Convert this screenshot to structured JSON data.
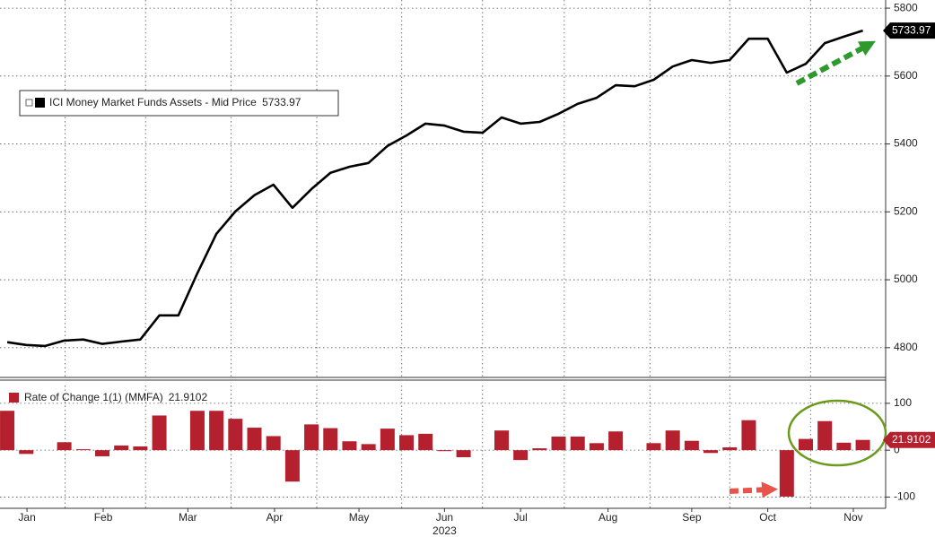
{
  "chart_data": [
    {
      "type": "line",
      "x": [
        0,
        1,
        2,
        3,
        4,
        5,
        6,
        7,
        8,
        9,
        10,
        11,
        12,
        13,
        14,
        15,
        16,
        17,
        18,
        19,
        20,
        21,
        22,
        23,
        24,
        25,
        26,
        27,
        28,
        29,
        30,
        31,
        32,
        33,
        34,
        35,
        36,
        37,
        38,
        39,
        40,
        41,
        42,
        43,
        44,
        45
      ],
      "series": [
        {
          "name": "ICI Money Market Funds Assets - Mid Price",
          "color": "#000000",
          "values": [
            4816,
            4808,
            4805,
            4821,
            4824,
            4811,
            4818,
            4824,
            4895,
            4895,
            5019,
            5135,
            5201,
            5249,
            5280,
            5212,
            5267,
            5315,
            5333,
            5344,
            5394,
            5425,
            5460,
            5454,
            5436,
            5433,
            5478,
            5460,
            5465,
            5489,
            5518,
            5536,
            5573,
            5570,
            5589,
            5628,
            5647,
            5639,
            5647,
            5710,
            5710,
            5610,
            5636,
            5697,
            5716,
            5733.97
          ]
        }
      ],
      "xlim": [
        -0.38,
        46.2
      ],
      "ylim": [
        4715,
        5824
      ],
      "yticks": [
        4800,
        5000,
        5200,
        5400,
        5600,
        5800
      ],
      "grid": true
    },
    {
      "type": "bar",
      "x": [
        0,
        1,
        2,
        3,
        4,
        5,
        6,
        7,
        8,
        9,
        10,
        11,
        12,
        13,
        14,
        15,
        16,
        17,
        18,
        19,
        20,
        21,
        22,
        23,
        24,
        25,
        26,
        27,
        28,
        29,
        30,
        31,
        32,
        33,
        34,
        35,
        36,
        37,
        38,
        39,
        40,
        41,
        42,
        43,
        44,
        45
      ],
      "series": [
        {
          "name": "Rate of Change 1(1) (MMFA)",
          "color": "#b5202e",
          "values": [
            84,
            -8,
            0,
            17,
            2,
            -13,
            10,
            8,
            74,
            0,
            84,
            84,
            67,
            48,
            30,
            -67,
            55,
            47,
            19,
            13,
            46,
            32,
            35,
            -2,
            -15,
            0,
            42,
            -21,
            4,
            29,
            29,
            15,
            40,
            0,
            15,
            42,
            20,
            -6,
            6,
            64,
            0,
            -99,
            24,
            62,
            16,
            21.9102
          ]
        }
      ],
      "xlim": [
        -0.38,
        46.2
      ],
      "ylim": [
        -124,
        138
      ],
      "yticks": [
        -100,
        0,
        100
      ],
      "xticks": [
        {
          "value": 1.04,
          "label": "Jan"
        },
        {
          "value": 5.05,
          "label": "Feb"
        },
        {
          "value": 9.5,
          "label": "Mar"
        },
        {
          "value": 14.06,
          "label": "Apr"
        },
        {
          "value": 18.5,
          "label": "May"
        },
        {
          "value": 23.0,
          "label": "Jun"
        },
        {
          "value": 27.0,
          "label": "Jul"
        },
        {
          "value": 31.6,
          "label": "Aug"
        },
        {
          "value": 36.0,
          "label": "Sep"
        },
        {
          "value": 40.0,
          "label": "Oct"
        },
        {
          "value": 44.5,
          "label": "Nov"
        }
      ],
      "x_sublabel": "2023",
      "grid": true
    }
  ]
}
